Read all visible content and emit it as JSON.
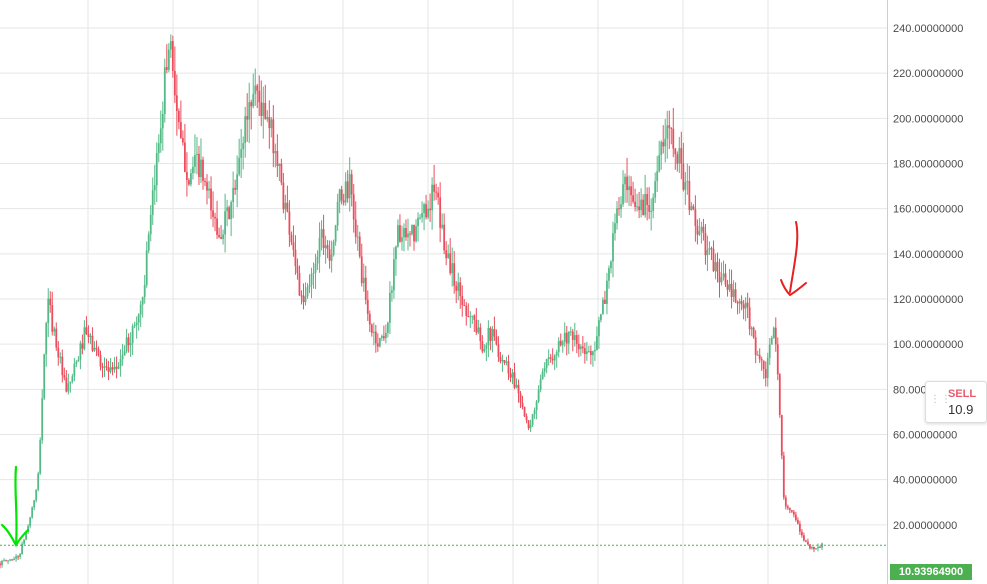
{
  "chart_data": {
    "type": "candlestick",
    "title": "",
    "xlabel": "",
    "ylabel": "",
    "ylim": [
      0,
      250
    ],
    "y_ticks": [
      "20.00000000",
      "40.00000000",
      "60.00000000",
      "80.00000000",
      "100.00000000",
      "120.00000000",
      "140.00000000",
      "160.00000000",
      "180.00000000",
      "200.00000000",
      "220.00000000",
      "240.00000000"
    ],
    "y_tick_values": [
      20,
      40,
      60,
      80,
      100,
      120,
      140,
      160,
      180,
      200,
      220,
      240
    ],
    "grid": true,
    "y_axis_position": "right",
    "up_color": "#53b987",
    "down_color": "#eb4d5c",
    "price_profile": [
      [
        0,
        3
      ],
      [
        2,
        6
      ],
      [
        3,
        20
      ],
      [
        4,
        38
      ],
      [
        5,
        120
      ],
      [
        6,
        100
      ],
      [
        7,
        78
      ],
      [
        8,
        90
      ],
      [
        9,
        105
      ],
      [
        10,
        98
      ],
      [
        11,
        90
      ],
      [
        12,
        86
      ],
      [
        13,
        96
      ],
      [
        14,
        105
      ],
      [
        15,
        118
      ],
      [
        16,
        155
      ],
      [
        17,
        200
      ],
      [
        18,
        238
      ],
      [
        19,
        190
      ],
      [
        20,
        175
      ],
      [
        21,
        180
      ],
      [
        22,
        165
      ],
      [
        23,
        150
      ],
      [
        24,
        155
      ],
      [
        25,
        170
      ],
      [
        26,
        200
      ],
      [
        27,
        215
      ],
      [
        28,
        200
      ],
      [
        29,
        190
      ],
      [
        30,
        165
      ],
      [
        31,
        145
      ],
      [
        32,
        115
      ],
      [
        33,
        130
      ],
      [
        34,
        150
      ],
      [
        35,
        140
      ],
      [
        36,
        165
      ],
      [
        37,
        170
      ],
      [
        38,
        140
      ],
      [
        39,
        110
      ],
      [
        40,
        100
      ],
      [
        41,
        108
      ],
      [
        42,
        150
      ],
      [
        43,
        145
      ],
      [
        44,
        150
      ],
      [
        45,
        160
      ],
      [
        46,
        168
      ],
      [
        47,
        145
      ],
      [
        48,
        130
      ],
      [
        49,
        118
      ],
      [
        50,
        112
      ],
      [
        51,
        100
      ],
      [
        52,
        105
      ],
      [
        53,
        95
      ],
      [
        54,
        88
      ],
      [
        55,
        78
      ],
      [
        56,
        60
      ],
      [
        57,
        80
      ],
      [
        58,
        92
      ],
      [
        59,
        100
      ],
      [
        60,
        104
      ],
      [
        61,
        100
      ],
      [
        62,
        95
      ],
      [
        63,
        100
      ],
      [
        64,
        120
      ],
      [
        65,
        150
      ],
      [
        66,
        170
      ],
      [
        67,
        160
      ],
      [
        68,
        162
      ],
      [
        69,
        165
      ],
      [
        70,
        185
      ],
      [
        71,
        198
      ],
      [
        72,
        180
      ],
      [
        73,
        162
      ],
      [
        74,
        150
      ],
      [
        75,
        140
      ],
      [
        76,
        132
      ],
      [
        77,
        125
      ],
      [
        78,
        118
      ],
      [
        79,
        115
      ],
      [
        80,
        98
      ],
      [
        81,
        85
      ],
      [
        82,
        110
      ],
      [
        83,
        30
      ],
      [
        84,
        24
      ],
      [
        85,
        14
      ],
      [
        86,
        9
      ],
      [
        87,
        11
      ]
    ],
    "last_price": "10.93964900",
    "annotations": [
      {
        "type": "arrow",
        "color": "#00e600",
        "direction": "down",
        "note": "hand-drawn"
      },
      {
        "type": "arrow",
        "color": "#e62020",
        "direction": "down",
        "note": "hand-drawn"
      }
    ]
  },
  "widgets": {
    "sell_label": "SELL",
    "sell_value": "10.9"
  },
  "colors": {
    "grid": "#e6e6e6",
    "axis_border": "#cfcfcf",
    "last_price_bg": "#4caf50",
    "last_price_line": "#4caf50"
  }
}
